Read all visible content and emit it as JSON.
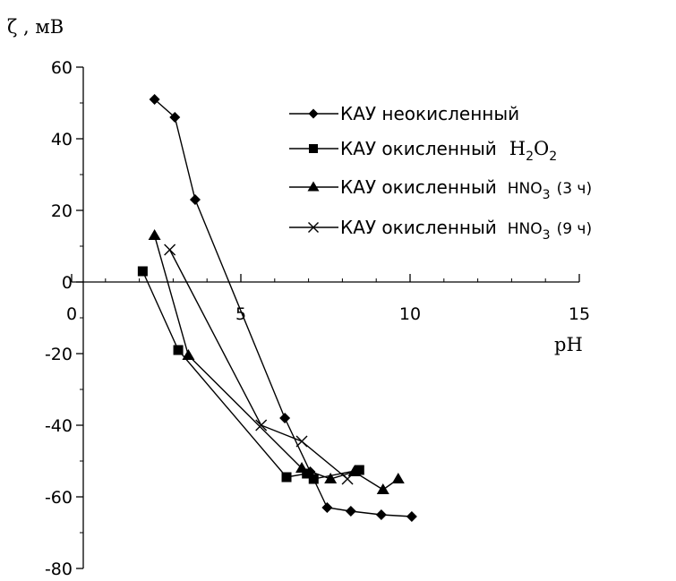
{
  "chart_data": {
    "type": "scatter",
    "ylabel": "ζ , мВ",
    "xlabel": "pH",
    "xlim": [
      0,
      15
    ],
    "ylim": [
      -80,
      60
    ],
    "x_ticks": [
      0,
      5,
      10,
      15
    ],
    "y_ticks": [
      60,
      40,
      20,
      0,
      -20,
      -40,
      -60,
      -80
    ],
    "legend_position": "upper-right",
    "series": [
      {
        "name": "КАУ неокисленный",
        "name_parts": [
          "КАУ неокисленный"
        ],
        "marker": "diamond",
        "x": [
          2.45,
          3.05,
          3.65,
          6.3,
          7.05,
          7.55,
          8.25,
          9.15,
          10.05
        ],
        "y": [
          51,
          46,
          23,
          -38,
          -53,
          -63,
          -64,
          -65,
          -65.5
        ]
      },
      {
        "name": "КАУ окисленный H2O2",
        "name_parts": [
          "КАУ окисленный",
          "H",
          "2",
          "O",
          "2"
        ],
        "marker": "square",
        "x": [
          2.1,
          3.15,
          6.35,
          6.95,
          7.15,
          8.5
        ],
        "y": [
          3,
          -19,
          -54.5,
          -53.5,
          -55,
          -52.5
        ]
      },
      {
        "name": "КАУ окисленный HNO3 (3 ч)",
        "name_parts": [
          "КАУ окисленный",
          "HNO",
          "3",
          "(3 ч)"
        ],
        "marker": "triangle",
        "x": [
          2.45,
          3.45,
          6.8,
          7.65,
          8.35,
          9.2,
          9.65
        ],
        "y": [
          13,
          -20.5,
          -52,
          -55,
          -53,
          -58,
          -55
        ]
      },
      {
        "name": "КАУ окисленный HNO3 (9 ч)",
        "name_parts": [
          "КАУ окисленный",
          "HNO",
          "3",
          "(9 ч)"
        ],
        "marker": "x",
        "x": [
          2.9,
          5.6,
          6.8,
          8.15
        ],
        "y": [
          9,
          -40,
          -44.5,
          -55
        ]
      }
    ]
  }
}
